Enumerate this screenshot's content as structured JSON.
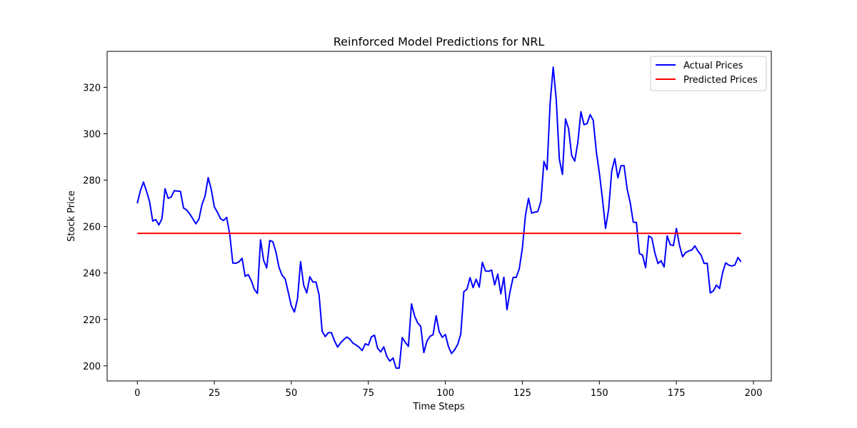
{
  "chart_data": {
    "type": "line",
    "title": "Reinforced Model Predictions for NRL",
    "xlabel": "Time Steps",
    "ylabel": "Stock Price",
    "xlim": [
      -9.8,
      205.8
    ],
    "ylim": [
      193.5,
      335.5
    ],
    "x_ticks": [
      0,
      25,
      50,
      75,
      100,
      125,
      150,
      175,
      200
    ],
    "y_ticks": [
      200,
      220,
      240,
      260,
      280,
      300,
      320
    ],
    "grid": false,
    "legend": {
      "placement": "top-right"
    },
    "series": [
      {
        "name": "Actual Prices",
        "color": "#0000ff",
        "values": [
          270,
          275.5,
          279.2,
          275.2,
          270.6,
          262.4,
          263.0,
          260.7,
          263.4,
          276.3,
          272.2,
          272.7,
          275.5,
          275.3,
          275.2,
          268.0,
          267.2,
          265.5,
          263.4,
          261.2,
          263.2,
          269.5,
          273.2,
          281.1,
          276.0,
          268.5,
          266.2,
          263.4,
          262.6,
          264.0,
          256.7,
          244.3,
          244.2,
          244.8,
          246.3,
          238.6,
          239.3,
          236.7,
          232.9,
          231.2,
          254.3,
          245.5,
          242.2,
          254.0,
          253.5,
          249.0,
          242.4,
          239.0,
          237.5,
          231.7,
          225.8,
          223.2,
          228.9,
          244.9,
          234.8,
          231.4,
          238.4,
          236.1,
          236.1,
          230.6,
          214.9,
          212.6,
          214.3,
          214.3,
          210.8,
          208.1,
          209.9,
          211.3,
          212.4,
          211.5,
          209.8,
          209.0,
          208.0,
          206.6,
          209.5,
          208.9,
          212.5,
          213.2,
          207.6,
          206.0,
          208.2,
          204.0,
          202.0,
          203.4,
          199.0,
          199.0,
          212.2,
          210.1,
          208.4,
          226.7,
          221.5,
          218.5,
          217.0,
          205.7,
          210.6,
          212.7,
          213.4,
          221.6,
          214.7,
          212.3,
          213.5,
          208.3,
          205.3,
          206.9,
          209.2,
          213.7,
          232.0,
          233.0,
          238.0,
          233.7,
          237.3,
          233.9,
          244.6,
          240.9,
          240.7,
          241.3,
          234.9,
          239.5,
          231.0,
          238.2,
          224.2,
          232.1,
          238.1,
          238.1,
          241.9,
          250.8,
          264.9,
          272.2,
          265.8,
          266.2,
          266.5,
          270.8,
          288.1,
          284.5,
          313.1,
          328.7,
          314.6,
          289.0,
          282.5,
          306.4,
          302.2,
          290.6,
          288.2,
          296.3,
          309.5,
          303.9,
          304.4,
          308.2,
          305.8,
          292.3,
          283.0,
          271.8,
          259.2,
          267.5,
          284.0,
          289.3,
          281.0,
          286.2,
          286.3,
          276.2,
          270.3,
          261.9,
          261.8,
          248.4,
          247.7,
          242.3,
          256.0,
          255.1,
          248.7,
          244.1,
          245.3,
          242.6,
          256.0,
          252.2,
          251.8,
          259.2,
          251.9,
          247.0,
          248.8,
          249.5,
          249.9,
          251.7,
          249.4,
          247.7,
          244.1,
          244.2,
          231.4,
          232.3,
          234.8,
          233.3,
          240.2,
          244.4,
          243.4,
          243.0,
          243.5,
          246.7,
          244.8
        ]
      },
      {
        "name": "Predicted Prices",
        "color": "#ff0000",
        "values": [
          257.1,
          257.1
        ]
      }
    ]
  }
}
